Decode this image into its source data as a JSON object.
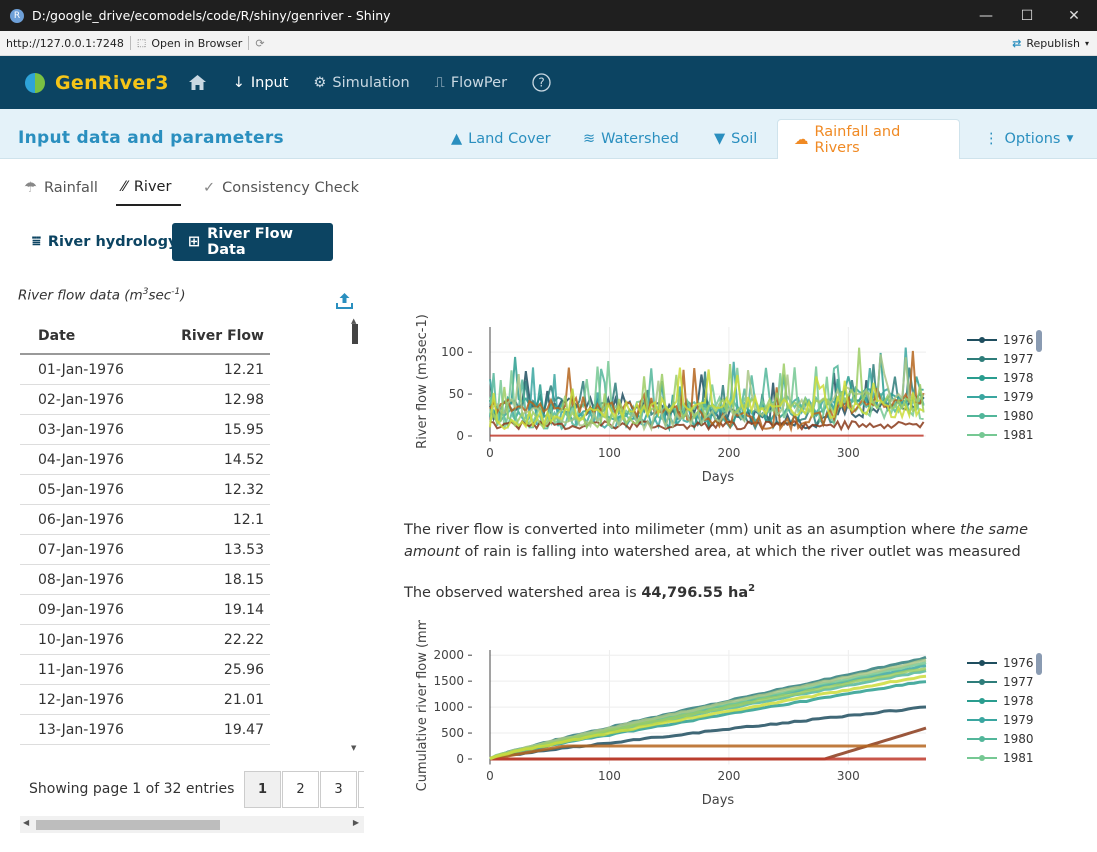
{
  "window": {
    "title": "D:/google_drive/ecomodels/code/R/shiny/genriver - Shiny"
  },
  "addressbar": {
    "url": "http://127.0.0.1:7248",
    "open_browser": "Open in Browser",
    "republish": "Republish"
  },
  "nav": {
    "brand": "GenRiver3",
    "items": [
      "Input",
      "Simulation",
      "FlowPer"
    ]
  },
  "header": {
    "title": "Input data and parameters",
    "tabs": [
      "Land Cover",
      "Watershed",
      "Soil",
      "Rainfall and Rivers",
      "Options"
    ]
  },
  "subtabs": [
    "Rainfall",
    "River",
    "Consistency Check"
  ],
  "buttons": {
    "hydrology": "River hydrology",
    "flow_data": "River Flow Data"
  },
  "table": {
    "caption": "River flow data (m",
    "caption_sup1": "3",
    "caption_mid": "sec",
    "caption_sup2": "-1",
    "caption_end": ")",
    "headers": [
      "Date",
      "River Flow"
    ],
    "rows": [
      [
        "01-Jan-1976",
        "12.21"
      ],
      [
        "02-Jan-1976",
        "12.98"
      ],
      [
        "03-Jan-1976",
        "15.95"
      ],
      [
        "04-Jan-1976",
        "14.52"
      ],
      [
        "05-Jan-1976",
        "12.32"
      ],
      [
        "06-Jan-1976",
        "12.1"
      ],
      [
        "07-Jan-1976",
        "13.53"
      ],
      [
        "08-Jan-1976",
        "18.15"
      ],
      [
        "09-Jan-1976",
        "19.14"
      ],
      [
        "10-Jan-1976",
        "22.22"
      ],
      [
        "11-Jan-1976",
        "25.96"
      ],
      [
        "12-Jan-1976",
        "21.01"
      ],
      [
        "13-Jan-1976",
        "19.47"
      ]
    ],
    "page_info": "Showing page 1 of 32 entries",
    "pages": [
      "1",
      "2",
      "3"
    ]
  },
  "text": {
    "para1a": "The river flow is converted into milimeter (mm) unit as an asumption where ",
    "para1b": "the same amount",
    "para1c": " of rain is falling into watershed area, at which the river outlet was measured",
    "area_pre": "The observed watershed area is ",
    "area_val": "44,796.55 ha",
    "area_sup": "2"
  },
  "legend_years": [
    "1976",
    "1977",
    "1978",
    "1979",
    "1980",
    "1981"
  ],
  "colors": {
    "accent": "#f08a24",
    "nav": "#0c4462",
    "link": "#2a8fbf"
  },
  "chart_data": [
    {
      "type": "line",
      "xlabel": "Days",
      "ylabel": "River flow (m3sec-1)",
      "xlim": [
        0,
        365
      ],
      "ylim": [
        0,
        130
      ],
      "xticks": [
        "0",
        "100",
        "200",
        "300"
      ],
      "yticks": [
        "0",
        "50",
        "100"
      ],
      "series": [
        {
          "name": "1976",
          "color": "#1f4e5f"
        },
        {
          "name": "1977",
          "color": "#2e7d7a"
        },
        {
          "name": "1978",
          "color": "#2a9d8f"
        },
        {
          "name": "1979",
          "color": "#3aa6a0"
        },
        {
          "name": "1980",
          "color": "#52b69a"
        },
        {
          "name": "1981",
          "color": "#76c893"
        }
      ]
    },
    {
      "type": "line",
      "xlabel": "Days",
      "ylabel": "Cumulative river flow (mm",
      "xlim": [
        0,
        365
      ],
      "ylim": [
        0,
        2100
      ],
      "xticks": [
        "0",
        "100",
        "200",
        "300"
      ],
      "yticks": [
        "0",
        "500",
        "1000",
        "1500",
        "2000"
      ],
      "series": [
        {
          "name": "1976",
          "color": "#1f4e5f",
          "end": 1000
        },
        {
          "name": "1977",
          "color": "#2e7d7a",
          "end": 1950
        },
        {
          "name": "1978",
          "color": "#2a9d8f",
          "end": 1500
        },
        {
          "name": "1979",
          "color": "#3aa6a0",
          "end": 1800
        },
        {
          "name": "1980",
          "color": "#52b69a",
          "end": 1700
        },
        {
          "name": "1981",
          "color": "#76c893",
          "end": 1850
        }
      ]
    }
  ]
}
